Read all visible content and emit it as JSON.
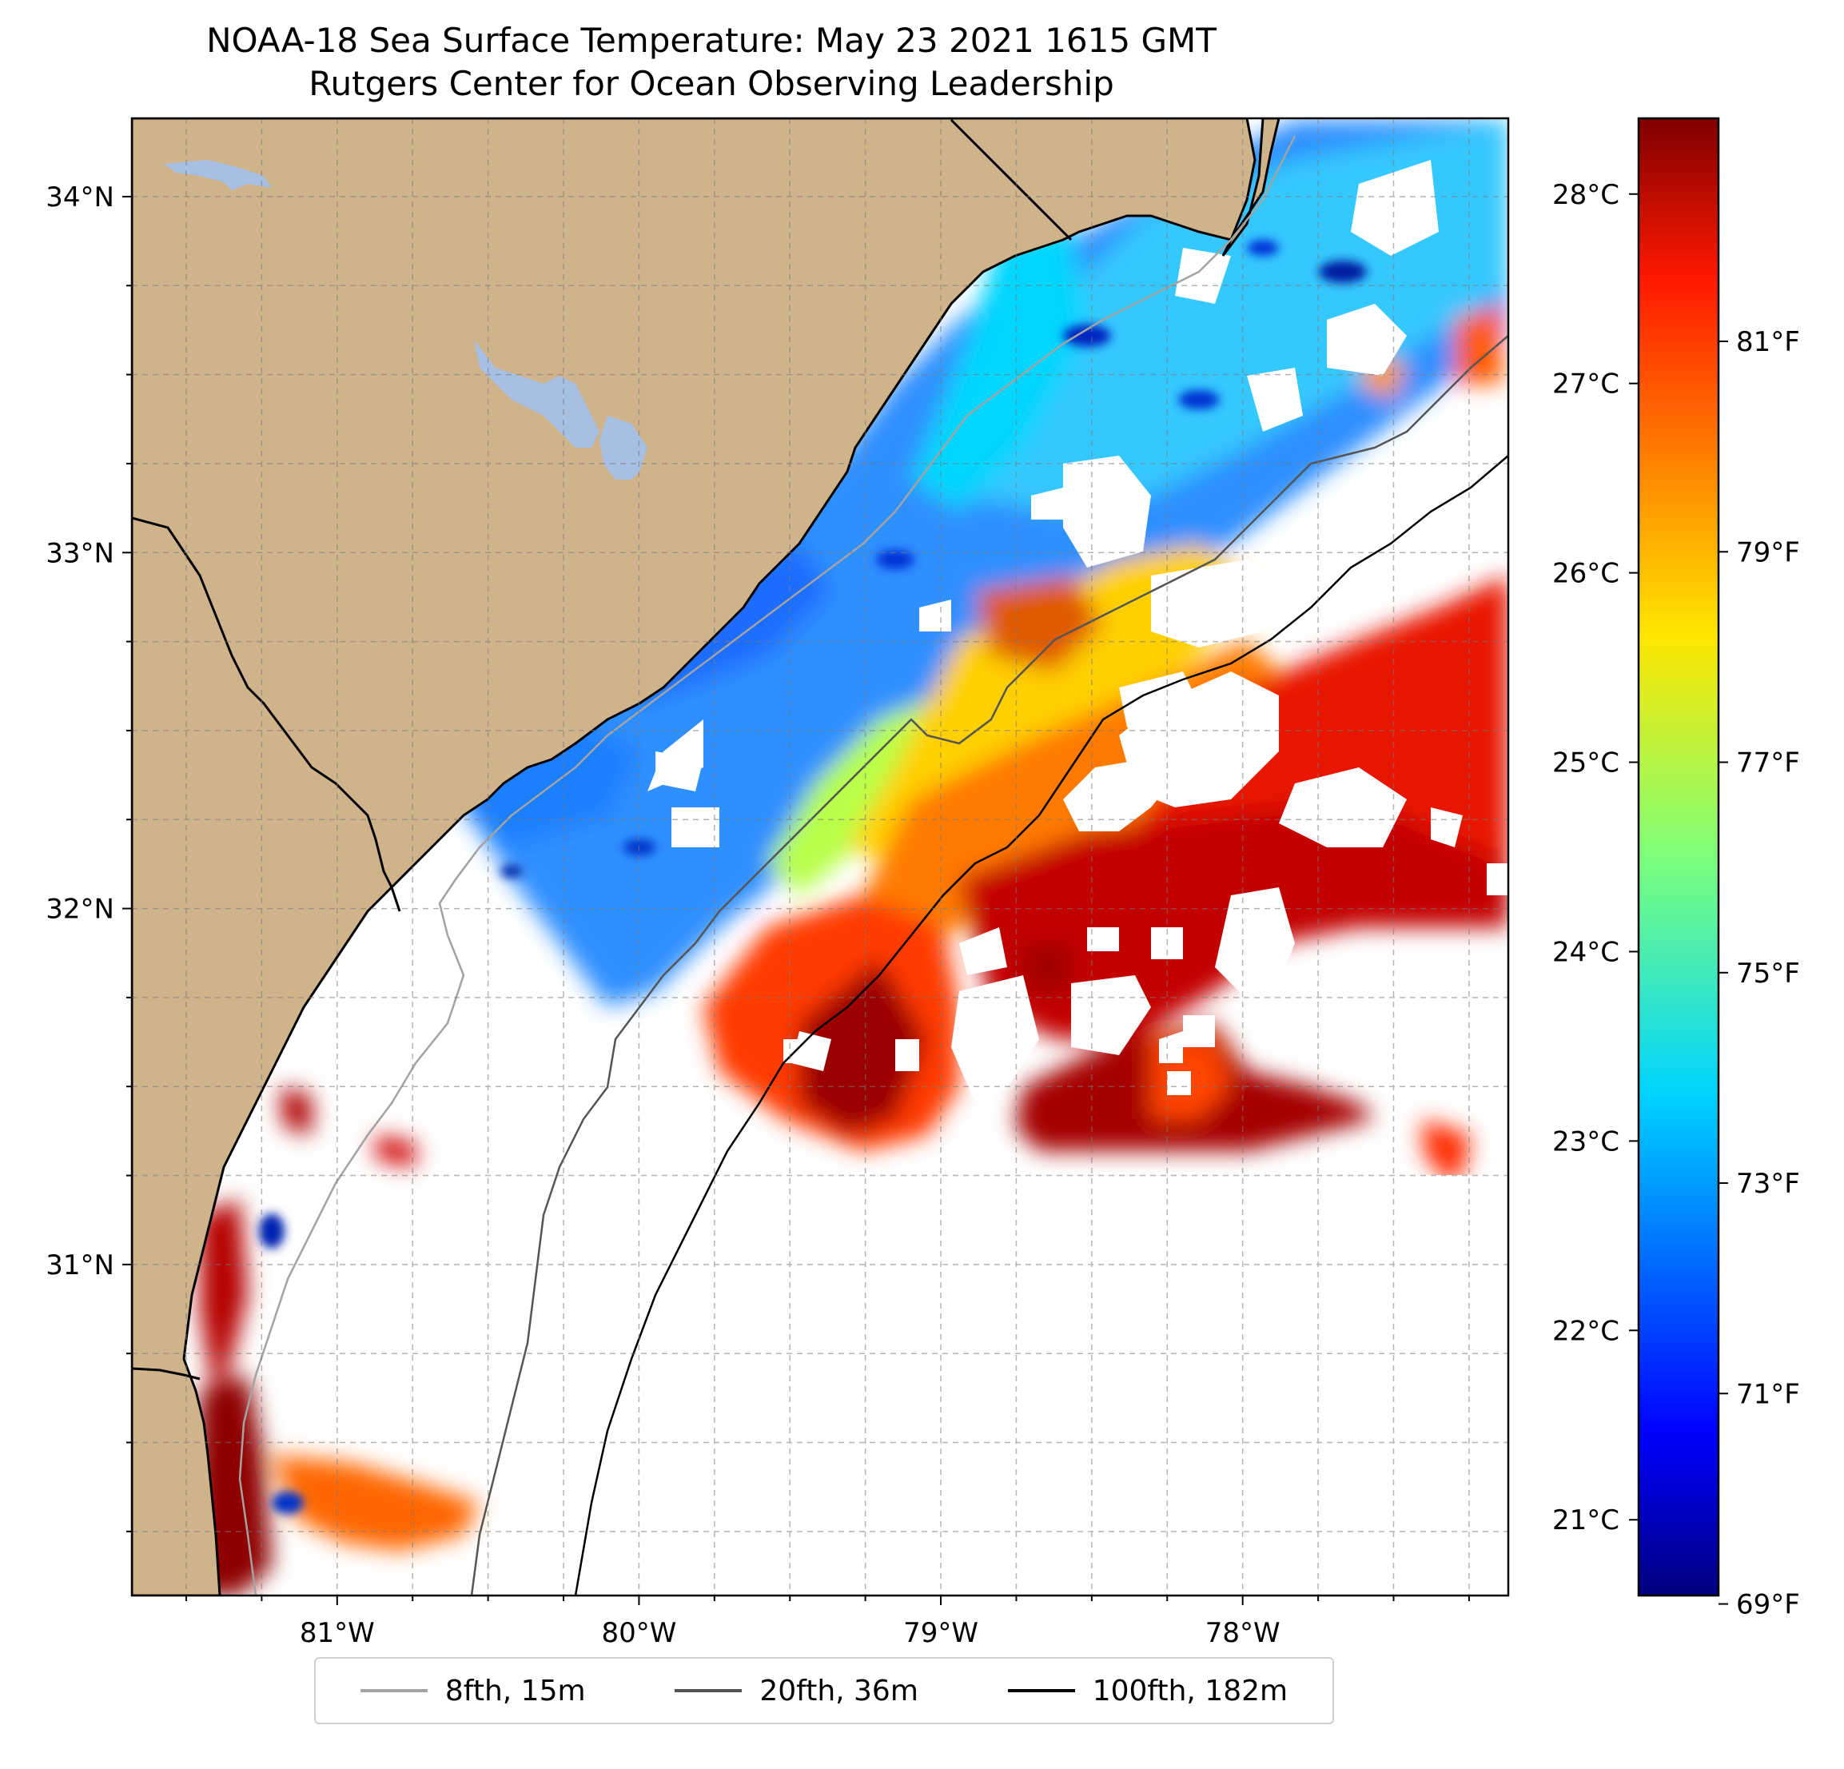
{
  "title": {
    "line1": "NOAA-18 Sea Surface Temperature: May 23 2021 1615 GMT",
    "line2": "Rutgers Center for Ocean Observing Leadership"
  },
  "map": {
    "lon_range": [
      -81.68,
      -77.12
    ],
    "lat_range": [
      30.07,
      34.22
    ],
    "lat_ticks": [
      {
        "value": 34,
        "label": "34°N"
      },
      {
        "value": 33,
        "label": "33°N"
      },
      {
        "value": 32,
        "label": "32°N"
      },
      {
        "value": 31,
        "label": "31°N"
      }
    ],
    "lon_ticks": [
      {
        "value": -81,
        "label": "81°W"
      },
      {
        "value": -80,
        "label": "80°W"
      },
      {
        "value": -79,
        "label": "79°W"
      },
      {
        "value": -78,
        "label": "78°W"
      }
    ],
    "gridlines": true,
    "land_color": "#cfb38b",
    "lake_color": "#a7bfe3",
    "coastline_color": "#000000"
  },
  "colorbar": {
    "colormap": "jet",
    "range_c": [
      20.6,
      28.4
    ],
    "celsius_ticks": [
      {
        "value": 28,
        "label": "28°C"
      },
      {
        "value": 27,
        "label": "27°C"
      },
      {
        "value": 26,
        "label": "26°C"
      },
      {
        "value": 25,
        "label": "25°C"
      },
      {
        "value": 24,
        "label": "24°C"
      },
      {
        "value": 23,
        "label": "23°C"
      },
      {
        "value": 22,
        "label": "22°C"
      },
      {
        "value": 21,
        "label": "21°C"
      }
    ],
    "fahrenheit_ticks": [
      {
        "value": 81,
        "label": "81°F"
      },
      {
        "value": 79,
        "label": "79°F"
      },
      {
        "value": 77,
        "label": "77°F"
      },
      {
        "value": 75,
        "label": "75°F"
      },
      {
        "value": 73,
        "label": "73°F"
      },
      {
        "value": 71,
        "label": "71°F"
      },
      {
        "value": 69,
        "label": "69°F"
      }
    ]
  },
  "legend": {
    "items": [
      {
        "label": "8fth, 15m",
        "color": "#a3a3a3"
      },
      {
        "label": "20fth, 36m",
        "color": "#555555"
      },
      {
        "label": "100fth, 182m",
        "color": "#000000"
      }
    ]
  }
}
